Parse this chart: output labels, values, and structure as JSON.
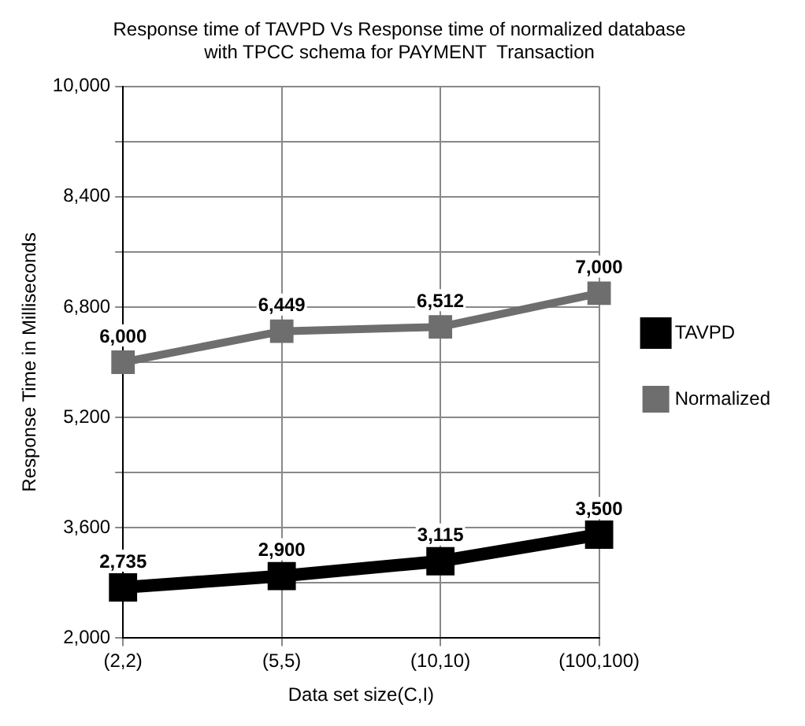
{
  "chart_data": {
    "type": "line",
    "title": "Response time of TAVPD Vs Response time of normalized database\nwith TPCC schema for PAYMENT  Transaction",
    "xlabel": "Data set size(C,I)",
    "ylabel": "Response Time in Milliseconds",
    "categories": [
      "(2,2)",
      "(5,5)",
      "(10,10)",
      "(100,100)"
    ],
    "series": [
      {
        "name": "TAVPD",
        "color": "#000000",
        "values": [
          2735,
          2900,
          3115,
          3500
        ],
        "value_labels": [
          "2,735",
          "2,900",
          "3,115",
          "3,500"
        ]
      },
      {
        "name": "Normalized",
        "color": "#6e6e6e",
        "values": [
          6000,
          6449,
          6512,
          7000
        ],
        "value_labels": [
          "6,000",
          "6,449",
          "6,512",
          "7,000"
        ]
      }
    ],
    "ylim": [
      2000,
      10000
    ],
    "yticks": [
      {
        "value": 2000,
        "label": "2,000"
      },
      {
        "value": 2800,
        "label": null
      },
      {
        "value": 3600,
        "label": "3,600"
      },
      {
        "value": 4400,
        "label": null
      },
      {
        "value": 5200,
        "label": "5,200"
      },
      {
        "value": 6000,
        "label": null
      },
      {
        "value": 6800,
        "label": "6,800"
      },
      {
        "value": 7600,
        "label": null
      },
      {
        "value": 8400,
        "label": "8,400"
      },
      {
        "value": 9200,
        "label": null
      },
      {
        "value": 10000,
        "label": "10,000"
      }
    ],
    "grid": true,
    "legend": "right",
    "marker": "square",
    "line_style": "solid"
  }
}
